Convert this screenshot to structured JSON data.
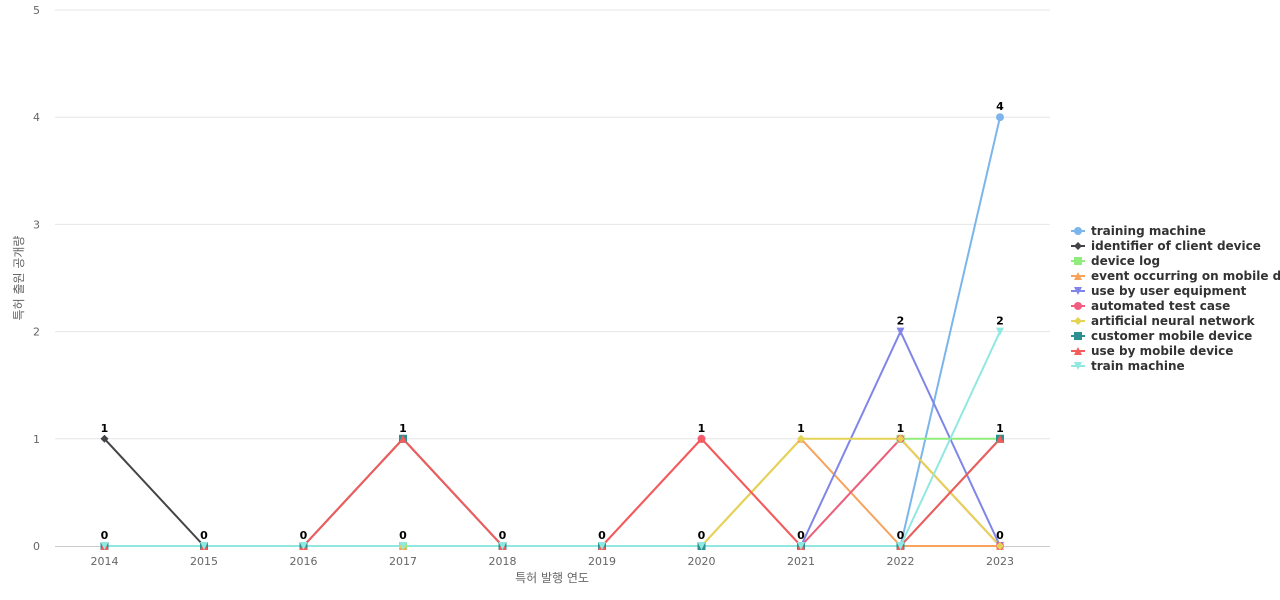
{
  "chart_data": {
    "type": "line",
    "xlabel": "특허 발행 연도",
    "ylabel": "특허 출원 공개량",
    "ylim": [
      0,
      5
    ],
    "yticks": [
      "0",
      "1",
      "2",
      "3",
      "4",
      "5"
    ],
    "grid": true,
    "legend_position": "right",
    "categories": [
      "2014",
      "2015",
      "2016",
      "2017",
      "2018",
      "2019",
      "2020",
      "2021",
      "2022",
      "2023"
    ],
    "series": [
      {
        "name": "training machine",
        "color": "#7cb5ec",
        "marker": "circle",
        "values": [
          0,
          0,
          0,
          0,
          0,
          0,
          0,
          0,
          0,
          4
        ]
      },
      {
        "name": "identifier of client device",
        "color": "#434348",
        "marker": "diamond",
        "values": [
          1,
          0,
          0,
          0,
          0,
          0,
          0,
          0,
          0,
          0
        ]
      },
      {
        "name": "device log",
        "color": "#90ed7d",
        "marker": "square",
        "values": [
          0,
          0,
          0,
          0,
          0,
          0,
          0,
          0,
          1,
          1
        ]
      },
      {
        "name": "event occurring on mobile d...",
        "color": "#f7a35c",
        "marker": "triangle",
        "values": [
          0,
          0,
          0,
          0,
          0,
          0,
          0,
          1,
          0,
          0
        ]
      },
      {
        "name": "use by user equipment",
        "color": "#8085e9",
        "marker": "triangle-down",
        "values": [
          0,
          0,
          0,
          0,
          0,
          0,
          0,
          0,
          2,
          0
        ]
      },
      {
        "name": "automated test case",
        "color": "#f15c80",
        "marker": "circle",
        "values": [
          0,
          0,
          0,
          1,
          0,
          0,
          1,
          0,
          1,
          0
        ]
      },
      {
        "name": "artificial neural network",
        "color": "#e4d354",
        "marker": "diamond",
        "values": [
          0,
          0,
          0,
          0,
          0,
          0,
          0,
          1,
          1,
          0
        ]
      },
      {
        "name": "customer mobile device",
        "color": "#2b908f",
        "marker": "square",
        "values": [
          0,
          0,
          0,
          1,
          0,
          0,
          0,
          0,
          0,
          1
        ]
      },
      {
        "name": "use by mobile device",
        "color": "#f45b5b",
        "marker": "triangle",
        "values": [
          0,
          0,
          0,
          1,
          0,
          0,
          1,
          0,
          0,
          1
        ]
      },
      {
        "name": "train machine",
        "color": "#91e8e1",
        "marker": "triangle-down",
        "values": [
          0,
          0,
          0,
          0,
          0,
          0,
          0,
          0,
          0,
          2
        ]
      }
    ],
    "data_labels": [
      {
        "x": "2014",
        "text": "1",
        "value": 1
      },
      {
        "x": "2014",
        "text": "0",
        "value": 0
      },
      {
        "x": "2015",
        "text": "0",
        "value": 0
      },
      {
        "x": "2016",
        "text": "0",
        "value": 0
      },
      {
        "x": "2017",
        "text": "1",
        "value": 1
      },
      {
        "x": "2017",
        "text": "0",
        "value": 0
      },
      {
        "x": "2018",
        "text": "0",
        "value": 0
      },
      {
        "x": "2019",
        "text": "0",
        "value": 0
      },
      {
        "x": "2020",
        "text": "1",
        "value": 1
      },
      {
        "x": "2020",
        "text": "0",
        "value": 0
      },
      {
        "x": "2021",
        "text": "1",
        "value": 1
      },
      {
        "x": "2021",
        "text": "0",
        "value": 0
      },
      {
        "x": "2022",
        "text": "2",
        "value": 2
      },
      {
        "x": "2022",
        "text": "1",
        "value": 1
      },
      {
        "x": "2022",
        "text": "0",
        "value": 0
      },
      {
        "x": "2023",
        "text": "4",
        "value": 4
      },
      {
        "x": "2023",
        "text": "2",
        "value": 2
      },
      {
        "x": "2023",
        "text": "1",
        "value": 1
      },
      {
        "x": "2023",
        "text": "0",
        "value": 0
      }
    ]
  }
}
